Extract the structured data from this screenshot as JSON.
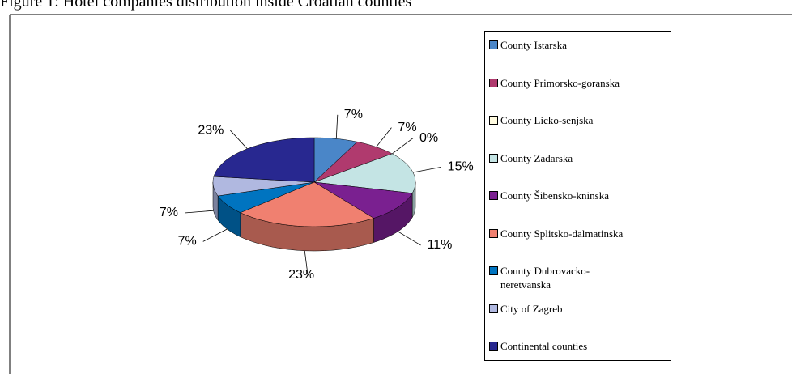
{
  "chart_data": {
    "type": "pie3d",
    "title": "Figure 1: Hotel companies distribution inside Croatian counties",
    "categories": [
      "County Istarska",
      "County Primorsko-goranska",
      "County Licko-senjska",
      "County Zadarska",
      "County Šibensko-kninska",
      "County Splitsko-dalmatinska",
      "County Dubrovacko-neretvanska",
      "City of Zagreb",
      "Continental counties"
    ],
    "values": [
      7,
      7,
      0,
      15,
      11,
      23,
      7,
      7,
      23
    ],
    "value_labels": [
      "7%",
      "7%",
      "0%",
      "15%",
      "11%",
      "23%",
      "7%",
      "7%",
      "23%"
    ],
    "colors": [
      "#4a86c8",
      "#b03a6e",
      "#fffbe0",
      "#c4e4e4",
      "#7a2090",
      "#f08070",
      "#0074c0",
      "#b0b8e0",
      "#282890"
    ],
    "legend": "right"
  }
}
